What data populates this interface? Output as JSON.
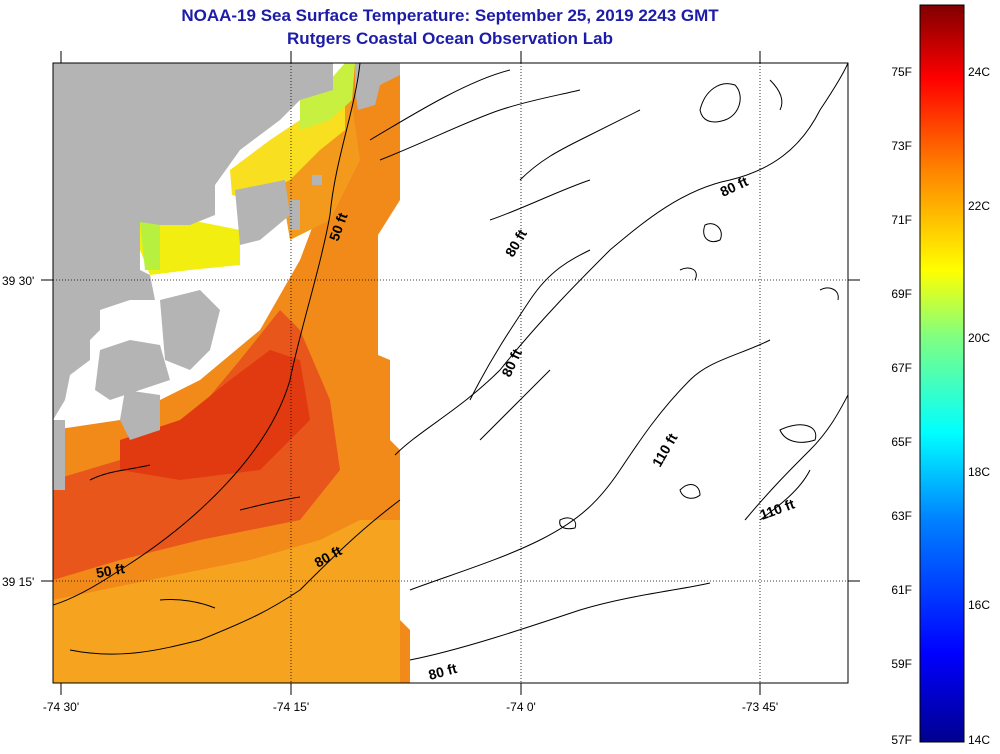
{
  "title": {
    "line1": "NOAA-19 Sea Surface Temperature:  September 25, 2019 2243 GMT",
    "line2": "Rutgers Coastal Ocean Observation Lab"
  },
  "axes": {
    "x_ticks": [
      "-74 30'",
      "-74 15'",
      "-74 0'",
      "-73 45'"
    ],
    "y_ticks": [
      "39 30'",
      "39 15'"
    ]
  },
  "contours": {
    "labels": [
      "50 ft",
      "50 ft",
      "80 ft",
      "80 ft",
      "80 ft",
      "80 ft",
      "80 ft",
      "110 ft",
      "110 ft"
    ]
  },
  "colorbar": {
    "fahrenheit": [
      "75F",
      "73F",
      "71F",
      "69F",
      "67F",
      "65F",
      "63F",
      "61F",
      "59F",
      "57F"
    ],
    "celsius": [
      "24C",
      "22C",
      "20C",
      "18C",
      "16C",
      "14C"
    ],
    "colors": [
      "#00008f",
      "#0000ff",
      "#0080ff",
      "#00ffff",
      "#80ff80",
      "#ffff00",
      "#ff8000",
      "#ff0000",
      "#800000"
    ]
  },
  "map_colors": {
    "land": "#b4b4b4",
    "sst_warm": "#e8561c",
    "sst_hot": "#e23a10",
    "sst_orange": "#f28a1a",
    "sst_light": "#f6a420",
    "sst_yellow": "#f2ee10",
    "sst_green": "#b8f040"
  }
}
